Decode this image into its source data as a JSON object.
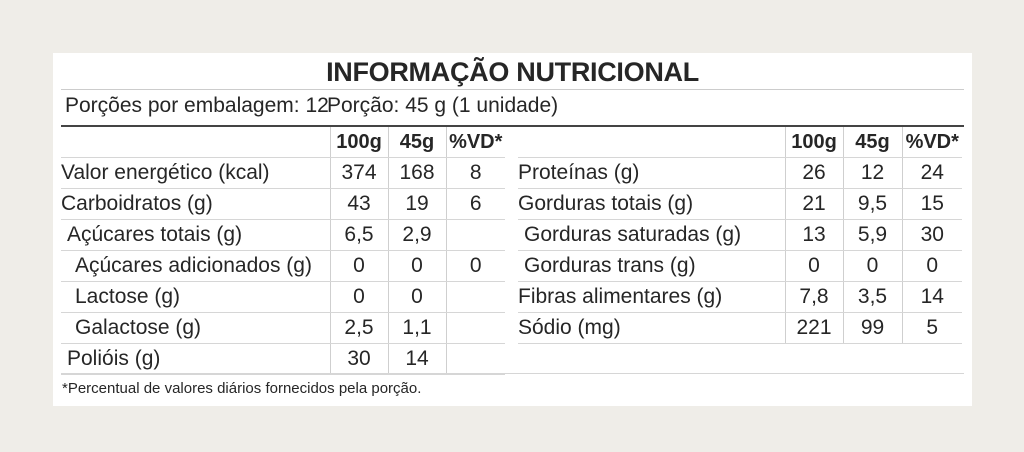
{
  "title": "INFORMAÇÃO NUTRICIONAL",
  "servings_per_package": "Porções por embalagem: 12",
  "serving_size": "Porção: 45 g (1 unidade)",
  "headers": [
    "100g",
    "45g",
    "%VD*"
  ],
  "left_rows": [
    {
      "label": "Valor energético (kcal)",
      "v100": "374",
      "v45": "168",
      "vd": "8"
    },
    {
      "label": "Carboidratos (g)",
      "v100": "43",
      "v45": "19",
      "vd": "6"
    },
    {
      "label": "Açúcares totais (g)",
      "v100": "6,5",
      "v45": "2,9",
      "vd": ""
    },
    {
      "label": "Açúcares adicionados (g)",
      "v100": "0",
      "v45": "0",
      "vd": "0"
    },
    {
      "label": "Lactose (g)",
      "v100": "0",
      "v45": "0",
      "vd": ""
    },
    {
      "label": "Galactose (g)",
      "v100": "2,5",
      "v45": "1,1",
      "vd": ""
    },
    {
      "label": "Polióis (g)",
      "v100": "30",
      "v45": "14",
      "vd": ""
    }
  ],
  "right_rows": [
    {
      "label": "Proteínas (g)",
      "v100": "26",
      "v45": "12",
      "vd": "24"
    },
    {
      "label": "Gorduras totais (g)",
      "v100": "21",
      "v45": "9,5",
      "vd": "15"
    },
    {
      "label": "Gorduras saturadas (g)",
      "v100": "13",
      "v45": "5,9",
      "vd": "30"
    },
    {
      "label": "Gorduras trans (g)",
      "v100": "0",
      "v45": "0",
      "vd": "0"
    },
    {
      "label": "Fibras alimentares (g)",
      "v100": "7,8",
      "v45": "3,5",
      "vd": "14"
    },
    {
      "label": "Sódio (mg)",
      "v100": "221",
      "v45": "99",
      "vd": "5"
    }
  ],
  "footnote": "*Percentual de valores diários fornecidos pela porção."
}
